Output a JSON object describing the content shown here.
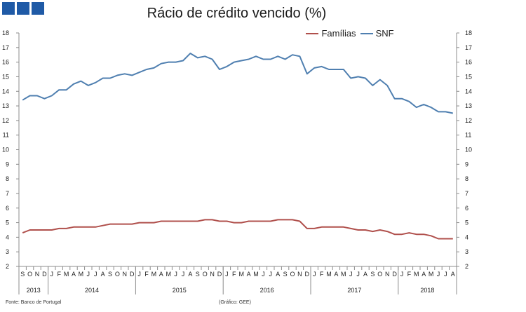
{
  "logo": {
    "color": "#1f5aa6"
  },
  "chart_data": {
    "type": "line",
    "title": "Rácio de crédito vencido (%)",
    "ylim": [
      2,
      18
    ],
    "y_ticks": [
      2,
      3,
      4,
      5,
      6,
      7,
      8,
      9,
      10,
      11,
      12,
      13,
      14,
      15,
      16,
      17,
      18
    ],
    "right_axis": true,
    "legend_position": "top-center",
    "grid": false,
    "months": [
      "S",
      "O",
      "N",
      "D",
      "J",
      "F",
      "M",
      "A",
      "M",
      "J",
      "J",
      "A",
      "S",
      "O",
      "N",
      "D",
      "J",
      "F",
      "M",
      "A",
      "M",
      "J",
      "J",
      "A",
      "S",
      "O",
      "N",
      "D",
      "J",
      "F",
      "M",
      "A",
      "M",
      "J",
      "J",
      "A",
      "S",
      "O",
      "N",
      "D",
      "J",
      "F",
      "M",
      "A",
      "M",
      "J",
      "J",
      "A",
      "S",
      "O",
      "N",
      "D",
      "J",
      "F",
      "M",
      "A",
      "M",
      "J",
      "J",
      "A"
    ],
    "years": [
      {
        "label": "2013",
        "start": 0,
        "end": 4
      },
      {
        "label": "2014",
        "start": 4,
        "end": 16
      },
      {
        "label": "2015",
        "start": 16,
        "end": 28
      },
      {
        "label": "2016",
        "start": 28,
        "end": 40
      },
      {
        "label": "2017",
        "start": 40,
        "end": 52
      },
      {
        "label": "2018",
        "start": 52,
        "end": 60
      }
    ],
    "series": [
      {
        "name": "Famílias",
        "color": "#b0504c",
        "values": [
          4.3,
          4.5,
          4.5,
          4.5,
          4.5,
          4.6,
          4.6,
          4.7,
          4.7,
          4.7,
          4.7,
          4.8,
          4.9,
          4.9,
          4.9,
          4.9,
          5.0,
          5.0,
          5.0,
          5.1,
          5.1,
          5.1,
          5.1,
          5.1,
          5.1,
          5.2,
          5.2,
          5.1,
          5.1,
          5.0,
          5.0,
          5.1,
          5.1,
          5.1,
          5.1,
          5.2,
          5.2,
          5.2,
          5.1,
          4.6,
          4.6,
          4.7,
          4.7,
          4.7,
          4.7,
          4.6,
          4.5,
          4.5,
          4.4,
          4.5,
          4.4,
          4.2,
          4.2,
          4.3,
          4.2,
          4.2,
          4.1,
          3.9,
          3.9,
          3.9
        ]
      },
      {
        "name": "SNF",
        "color": "#4f7fb0",
        "values": [
          13.4,
          13.7,
          13.7,
          13.5,
          13.7,
          14.1,
          14.1,
          14.5,
          14.7,
          14.4,
          14.6,
          14.9,
          14.9,
          15.1,
          15.2,
          15.1,
          15.3,
          15.5,
          15.6,
          15.9,
          16.0,
          16.0,
          16.1,
          16.6,
          16.3,
          16.4,
          16.2,
          15.5,
          15.7,
          16.0,
          16.1,
          16.2,
          16.4,
          16.2,
          16.2,
          16.4,
          16.2,
          16.5,
          16.4,
          15.2,
          15.6,
          15.7,
          15.5,
          15.5,
          15.5,
          14.9,
          15.0,
          14.9,
          14.4,
          14.8,
          14.4,
          13.5,
          13.5,
          13.3,
          12.9,
          13.1,
          12.9,
          12.6,
          12.6,
          12.5
        ]
      }
    ]
  },
  "footnotes": {
    "source": "Fonte: Banco de Portugal",
    "credit": "(Gráfico: GEE)"
  }
}
